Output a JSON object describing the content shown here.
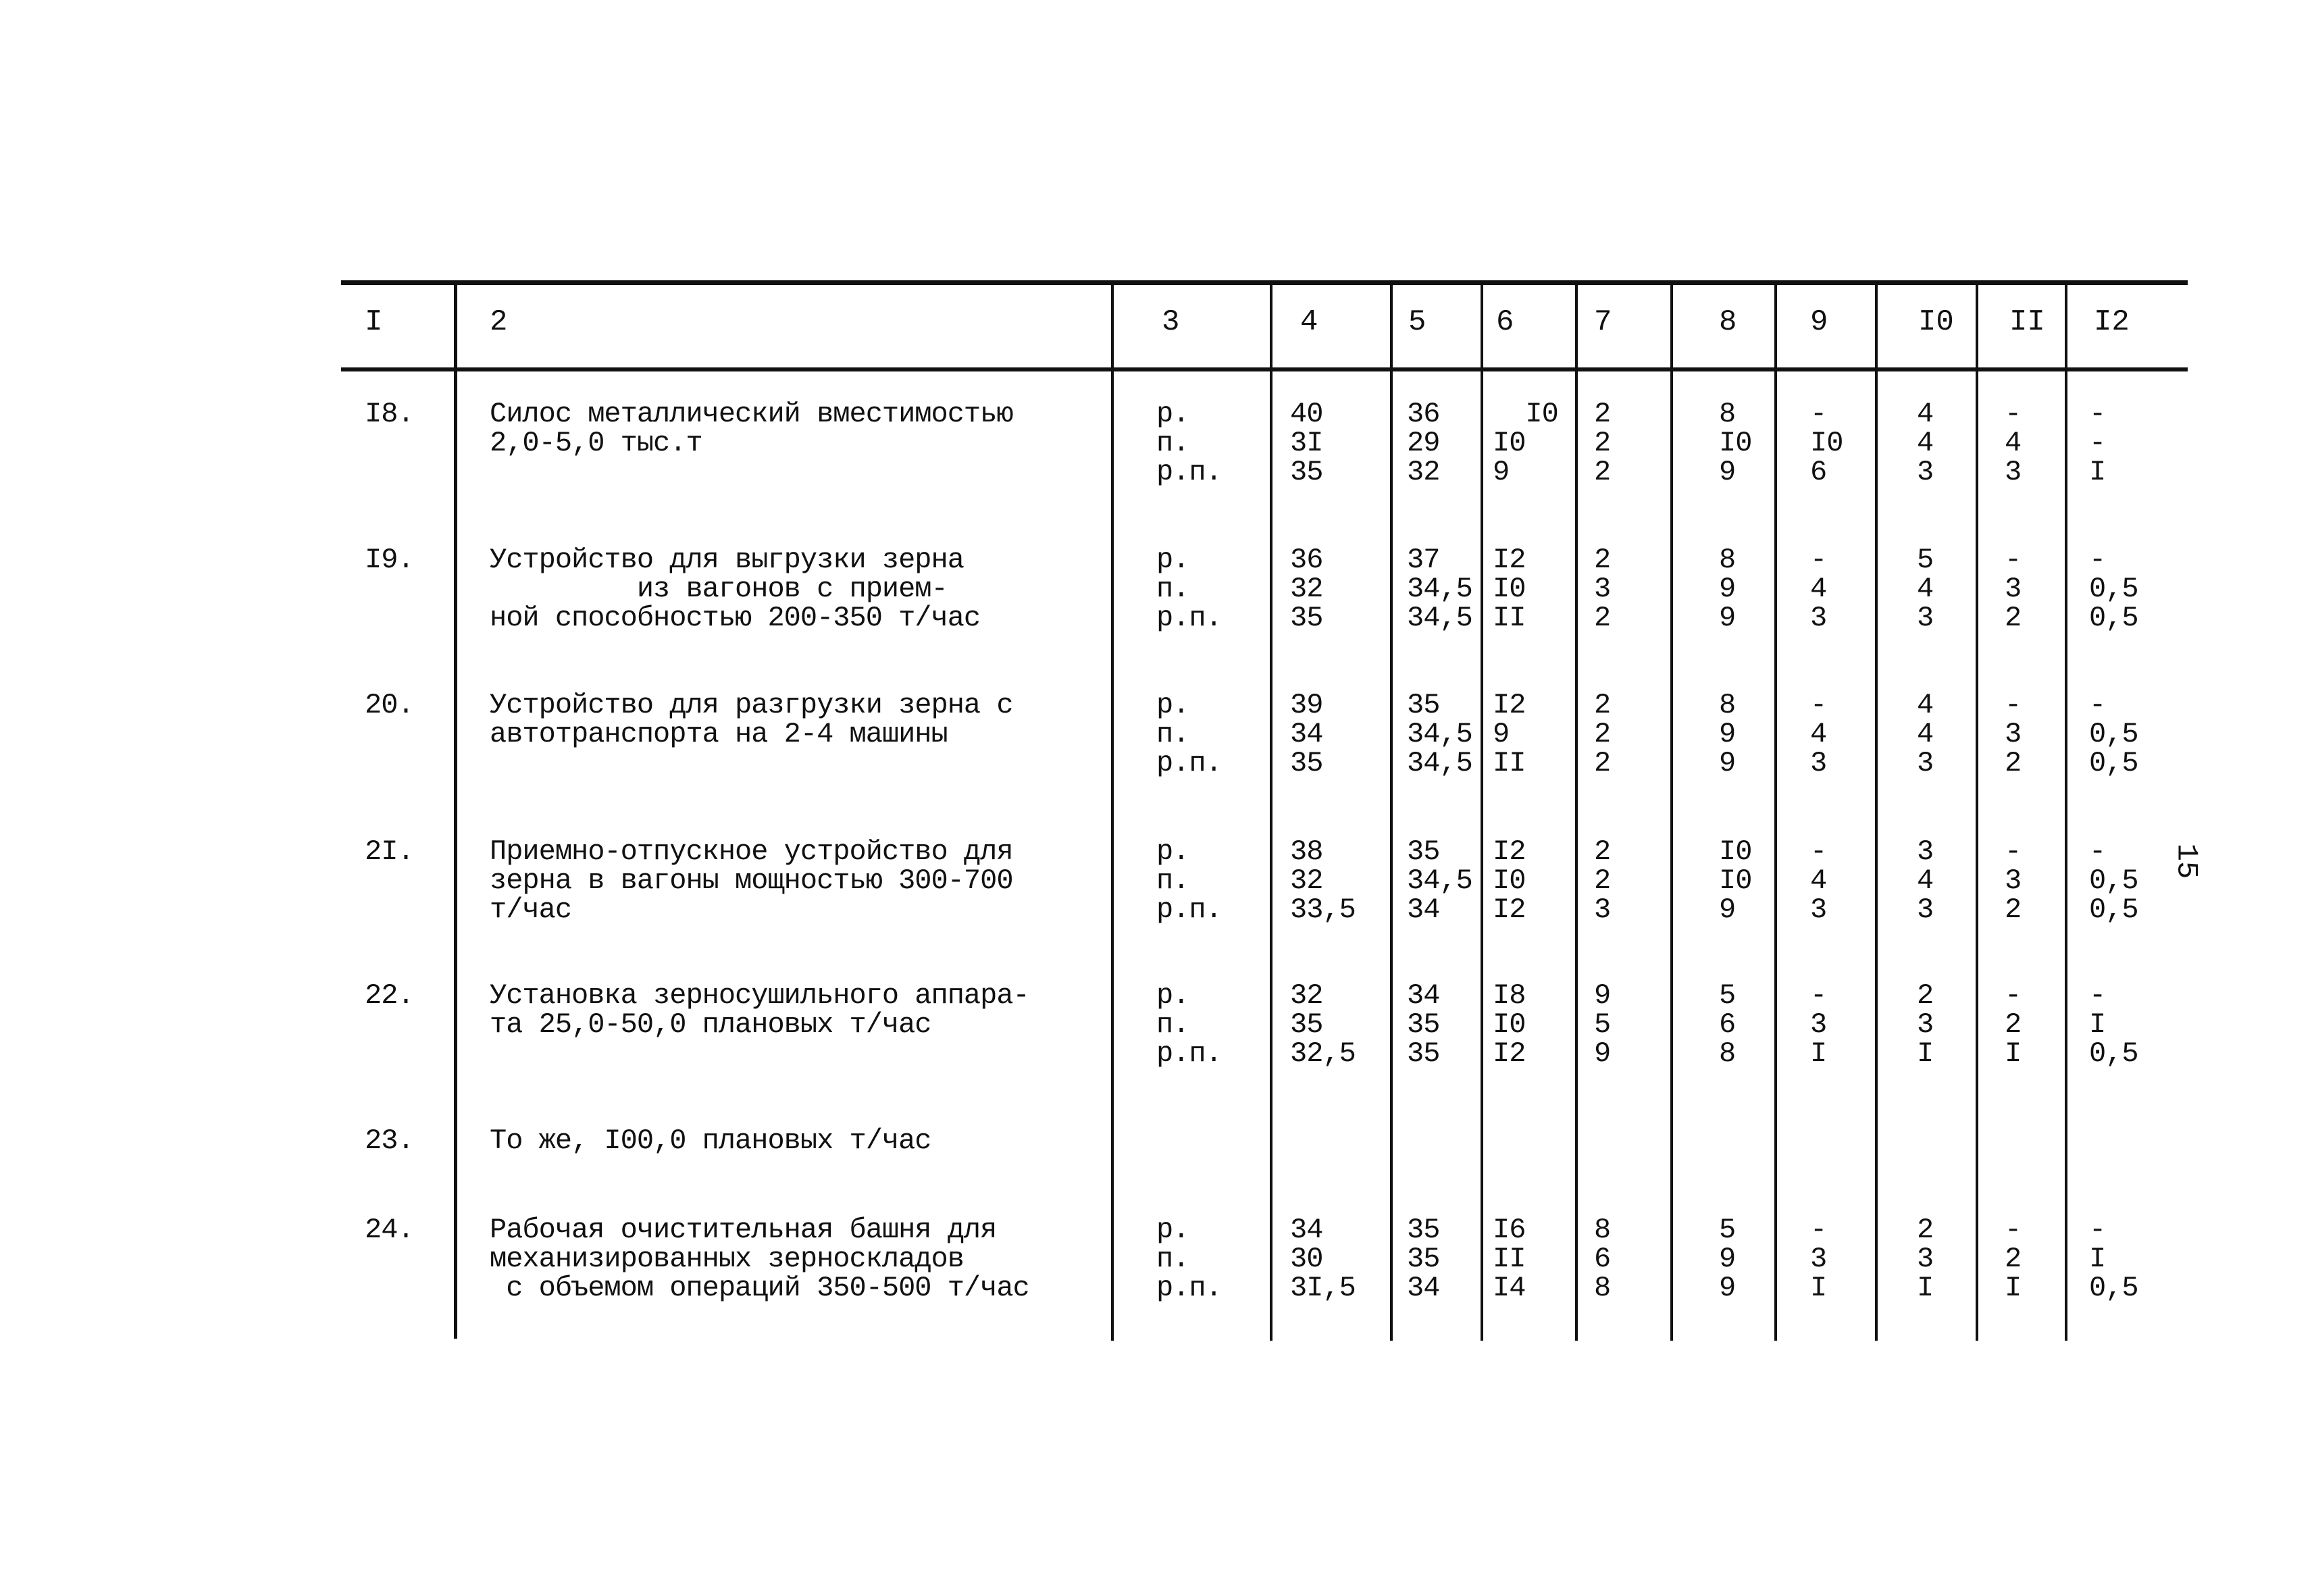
{
  "page_number": "15",
  "header": [
    "I",
    "2",
    "3",
    "4",
    "5",
    "6",
    "7",
    "8",
    "9",
    "I0",
    "II",
    "I2"
  ],
  "rows": [
    {
      "num": "I8.",
      "name": [
        "Силос металлический вместимостью",
        "2,0-5,0 тыс.т",
        ""
      ],
      "type": [
        "р.",
        "п.",
        "р.п."
      ],
      "c4": [
        "40",
        "3I",
        "35"
      ],
      "c5": [
        "36",
        "29",
        "32"
      ],
      "c6": [
        "  I0",
        "I0",
        "9"
      ],
      "c7": [
        "2",
        "2",
        "2"
      ],
      "c8": [
        "8",
        "I0",
        "9"
      ],
      "c9": [
        "-",
        "I0",
        "6"
      ],
      "c10": [
        "4",
        "4",
        "3"
      ],
      "c11": [
        "-",
        "4",
        "3"
      ],
      "c12": [
        "-",
        "-",
        "I"
      ]
    },
    {
      "num": "I9.",
      "name": [
        "Устройство для выгрузки зерна",
        "         из вагонов с прием-",
        "ной способностью 200-350 т/час"
      ],
      "type": [
        "р.",
        "п.",
        "р.п."
      ],
      "c4": [
        "36",
        "32",
        "35"
      ],
      "c5": [
        "37",
        "34,5",
        "34,5"
      ],
      "c6": [
        "I2",
        "I0",
        "II"
      ],
      "c7": [
        "2",
        "3",
        "2"
      ],
      "c8": [
        "8",
        "9",
        "9"
      ],
      "c9": [
        "-",
        "4",
        "3"
      ],
      "c10": [
        "5",
        "4",
        "3"
      ],
      "c11": [
        "-",
        "3",
        "2"
      ],
      "c12": [
        "-",
        "0,5",
        "0,5"
      ]
    },
    {
      "num": "20.",
      "name": [
        "Устройство для разгрузки зерна с",
        "автотранспорта на 2-4 машины",
        ""
      ],
      "type": [
        "р.",
        "п.",
        "р.п."
      ],
      "c4": [
        "39",
        "34",
        "35"
      ],
      "c5": [
        "35",
        "34,5",
        "34,5"
      ],
      "c6": [
        "I2",
        "9",
        "II"
      ],
      "c7": [
        "2",
        "2",
        "2"
      ],
      "c8": [
        "8",
        "9",
        "9"
      ],
      "c9": [
        "-",
        "4",
        "3"
      ],
      "c10": [
        "4",
        "4",
        "3"
      ],
      "c11": [
        "-",
        "3",
        "2"
      ],
      "c12": [
        "-",
        "0,5",
        "0,5"
      ]
    },
    {
      "num": "2I.",
      "name": [
        "Приемно-отпускное устройство для",
        "зерна в вагоны мощностью 300-700",
        "т/час"
      ],
      "type": [
        "р.",
        "п.",
        "р.п."
      ],
      "c4": [
        "38",
        "32",
        "33,5"
      ],
      "c5": [
        "35",
        "34,5",
        "34"
      ],
      "c6": [
        "I2",
        "I0",
        "I2"
      ],
      "c7": [
        "2",
        "2",
        "3"
      ],
      "c8": [
        "I0",
        "I0",
        "9"
      ],
      "c9": [
        "-",
        "4",
        "3"
      ],
      "c10": [
        "3",
        "4",
        "3"
      ],
      "c11": [
        "-",
        "3",
        "2"
      ],
      "c12": [
        "-",
        "0,5",
        "0,5"
      ]
    },
    {
      "num": "22.",
      "name": [
        "Установка зерносушильного аппара-",
        "та 25,0-50,0 плановых т/час",
        ""
      ],
      "type": [
        "р.",
        "п.",
        "р.п."
      ],
      "c4": [
        "32",
        "35",
        "32,5"
      ],
      "c5": [
        "34",
        "35",
        "35"
      ],
      "c6": [
        "I8",
        "I0",
        "I2"
      ],
      "c7": [
        "9",
        "5",
        "9"
      ],
      "c8": [
        "5",
        "6",
        "8"
      ],
      "c9": [
        "-",
        "3",
        "I"
      ],
      "c10": [
        "2",
        "3",
        "I"
      ],
      "c11": [
        "-",
        "2",
        "I"
      ],
      "c12": [
        "-",
        "I",
        "0,5"
      ]
    },
    {
      "num": "23.",
      "name": [
        "То же, I00,0 плановых т/час",
        "",
        ""
      ],
      "type": [
        "",
        "",
        ""
      ],
      "c4": [
        "",
        "",
        ""
      ],
      "c5": [
        "",
        "",
        ""
      ],
      "c6": [
        "",
        "",
        ""
      ],
      "c7": [
        "",
        "",
        ""
      ],
      "c8": [
        "",
        "",
        ""
      ],
      "c9": [
        "",
        "",
        ""
      ],
      "c10": [
        "",
        "",
        ""
      ],
      "c11": [
        "",
        "",
        ""
      ],
      "c12": [
        "",
        "",
        ""
      ]
    },
    {
      "num": "24.",
      "name": [
        "Рабочая очистительная башня для",
        "механизированных зерноскладов",
        " с объемом операций 350-500 т/час"
      ],
      "type": [
        "р.",
        "п.",
        "р.п."
      ],
      "c4": [
        "34",
        "30",
        "3I,5"
      ],
      "c5": [
        "35",
        "35",
        "34"
      ],
      "c6": [
        "I6",
        "II",
        "I4"
      ],
      "c7": [
        "8",
        "6",
        "8"
      ],
      "c8": [
        "5",
        "9",
        "9"
      ],
      "c9": [
        "-",
        "3",
        "I"
      ],
      "c10": [
        "2",
        "3",
        "I"
      ],
      "c11": [
        "-",
        "2",
        "I"
      ],
      "c12": [
        "-",
        "I",
        "0,5"
      ]
    }
  ]
}
